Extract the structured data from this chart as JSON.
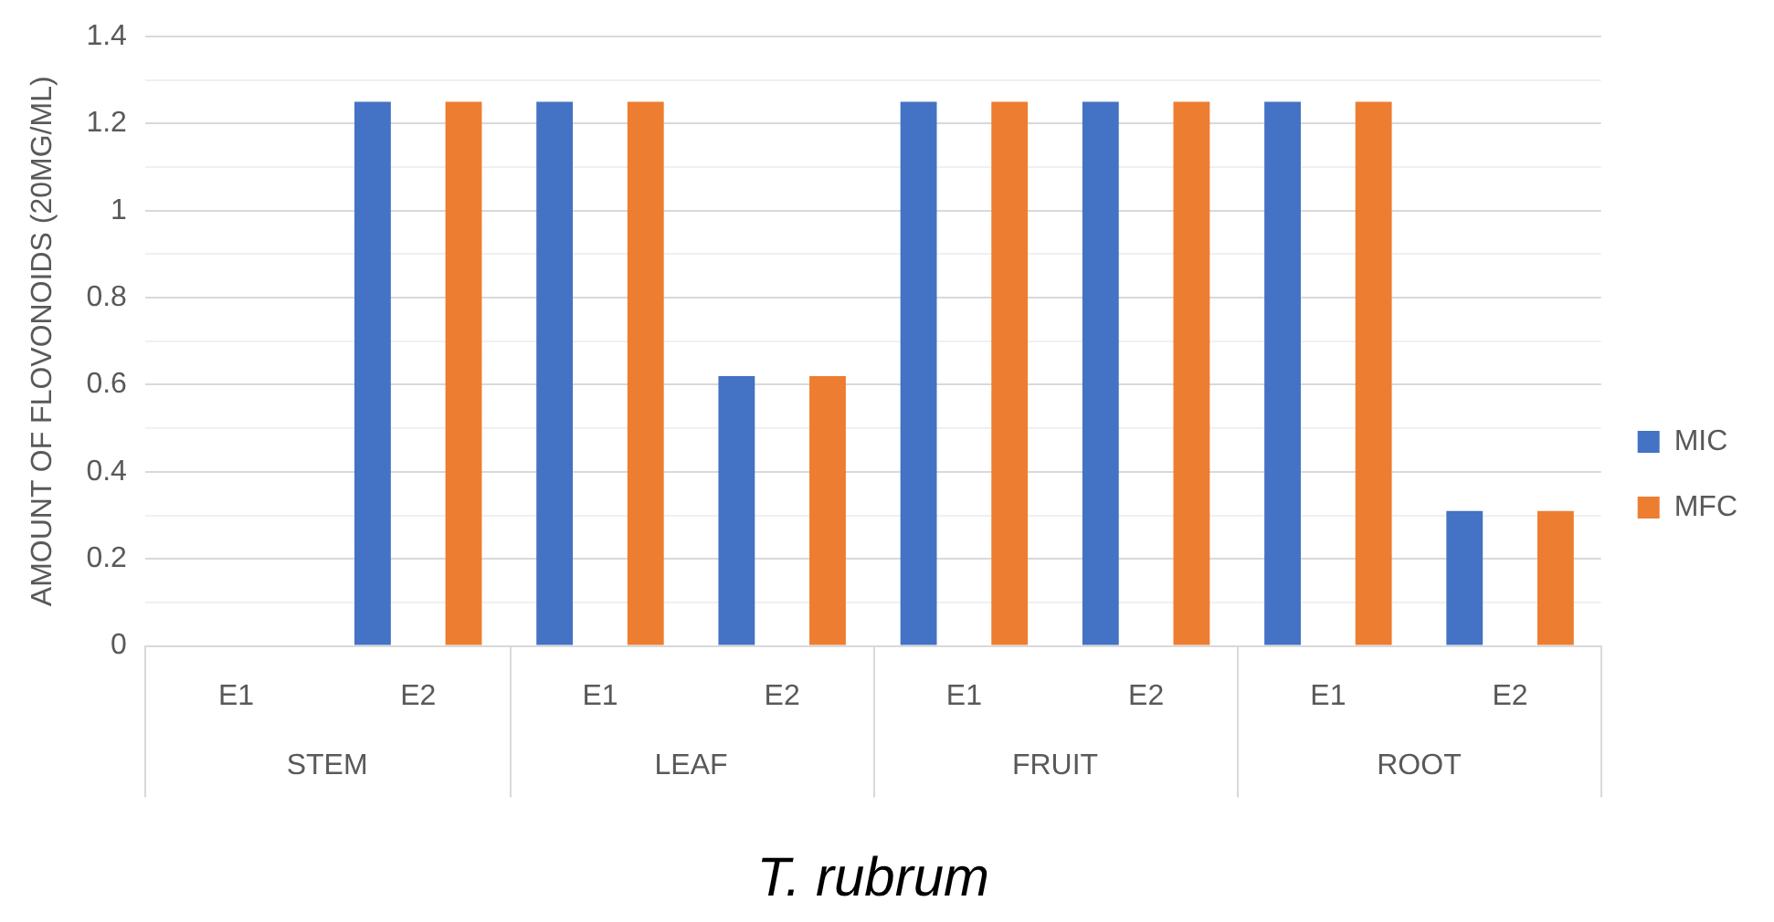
{
  "chart_data": {
    "type": "bar",
    "xlabel": "T. rubrum",
    "ylabel": "AMOUNT OF FLOVONOIDS (20MG/ML)",
    "categories": [
      "E1",
      "E2",
      "E1",
      "E2",
      "E1",
      "E2",
      "E1",
      "E2"
    ],
    "annotations": [
      "STEM",
      "LEAF",
      "FRUIT",
      "ROOT"
    ],
    "series": [
      {
        "name": "MIC",
        "color": "#4472c4",
        "values": [
          0,
          1.25,
          1.25,
          0.62,
          1.25,
          1.25,
          1.25,
          0.31
        ]
      },
      {
        "name": "MFC",
        "color": "#ed7d31",
        "values": [
          0,
          1.25,
          1.25,
          0.62,
          1.25,
          1.25,
          1.25,
          0.31
        ]
      }
    ],
    "ylim": [
      0,
      1.4
    ],
    "yticks": [
      0,
      {
        "value": 0.1,
        "label": null
      },
      0.2,
      {
        "value": 0.3,
        "label": null
      },
      0.4,
      {
        "value": 0.5,
        "label": null
      },
      0.6,
      {
        "value": 0.7,
        "label": null
      },
      0.8,
      {
        "value": 0.9,
        "label": null
      },
      1,
      {
        "value": 1.1,
        "label": null
      },
      1.2,
      {
        "value": 1.3,
        "label": null
      },
      1.4
    ],
    "grid": "y",
    "legend": "right"
  }
}
